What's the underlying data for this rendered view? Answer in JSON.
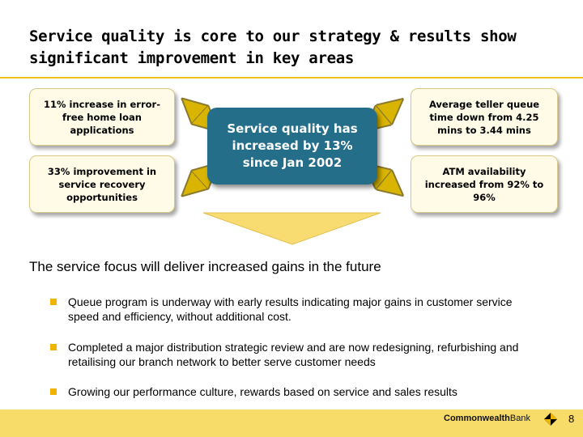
{
  "slide": {
    "title": "Service quality is core to our strategy & results show significant improvement in key areas",
    "center_box": "Service quality has increased by 13% since Jan 2002",
    "boxes": [
      "11% increase in error-free home loan applications",
      "33% improvement in service recovery opportunities",
      "Average teller queue time down from 4.25 mins to 3.44 mins",
      "ATM availability increased from 92% to 96%"
    ],
    "subheading": "The service focus will deliver increased gains in the future",
    "bullets": [
      "Queue program is underway with early results indicating major gains in customer service speed and efficiency, without additional cost.",
      "Completed a major distribution strategic review and are now redesigning, refurbishing and retailising our branch network to better serve customer needs",
      "Growing our performance culture, rewards based on service and sales results"
    ]
  },
  "footer": {
    "brand_bold": "Commonwealth",
    "brand_regular": "Bank",
    "page_number": "8"
  },
  "colors": {
    "accent_yellow": "#f0c020",
    "center_teal": "#246e8a",
    "box_fill": "#fffbe6",
    "arrow_fill": "#f8dc72",
    "bullet": "#f0b400"
  },
  "icons": [
    "commonwealth-bank-logo-icon",
    "bullet-square-icon",
    "double-arrow-icon",
    "down-arrow-icon"
  ]
}
